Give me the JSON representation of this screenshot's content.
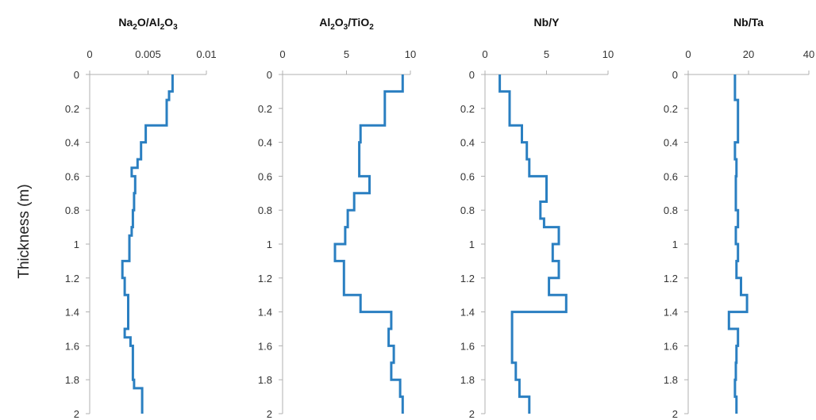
{
  "figure": {
    "ylabel": "Thickness (m)",
    "colors": {
      "series": "#2a7fc1",
      "axis": "#b0b0b0",
      "text": "#333333"
    }
  },
  "chart_data": [
    {
      "type": "line",
      "title": "Na2O/Al2O3",
      "title_parts": [
        [
          "Na",
          ""
        ],
        [
          "2",
          "sub"
        ],
        [
          "O/Al",
          ""
        ],
        [
          "2",
          "sub"
        ],
        [
          "O",
          ""
        ],
        [
          "3",
          "sub"
        ]
      ],
      "xlim": [
        0,
        0.01
      ],
      "xticks": [
        "0",
        "0.005",
        "0.01"
      ],
      "xtick_values": [
        0,
        0.005,
        0.01
      ],
      "ylim": [
        0,
        2
      ],
      "yticks": [
        "0",
        "0.2",
        "0.4",
        "0.6",
        "0.8",
        "1",
        "1.2",
        "1.4",
        "1.6",
        "1.8",
        "2"
      ],
      "ytick_values": [
        0,
        0.2,
        0.4,
        0.6,
        0.8,
        1,
        1.2,
        1.4,
        1.6,
        1.8,
        2
      ],
      "y_inverted": true,
      "step": "vertical",
      "x": [
        0.0071,
        0.0071,
        0.0068,
        0.0068,
        0.0066,
        0.0066,
        0.0048,
        0.0048,
        0.0044,
        0.0044,
        0.0041,
        0.0041,
        0.0036,
        0.0036,
        0.0039,
        0.0039,
        0.0038,
        0.0038,
        0.0037,
        0.0037,
        0.0036,
        0.0036,
        0.0034,
        0.0034,
        0.0028,
        0.0028,
        0.003,
        0.003,
        0.0033,
        0.0033,
        0.0033,
        0.0033,
        0.003,
        0.003,
        0.0035,
        0.0035,
        0.0037,
        0.0037,
        0.0038,
        0.0038,
        0.0045,
        0.0045
      ],
      "y": [
        0,
        0.1,
        0.1,
        0.15,
        0.15,
        0.3,
        0.3,
        0.4,
        0.4,
        0.5,
        0.5,
        0.55,
        0.55,
        0.6,
        0.6,
        0.7,
        0.7,
        0.8,
        0.8,
        0.9,
        0.9,
        0.95,
        0.95,
        1.1,
        1.1,
        1.2,
        1.2,
        1.3,
        1.3,
        1.4,
        1.4,
        1.5,
        1.5,
        1.55,
        1.55,
        1.6,
        1.6,
        1.8,
        1.8,
        1.85,
        1.85,
        2
      ]
    },
    {
      "type": "line",
      "title": "Al2O3/TiO2",
      "title_parts": [
        [
          "Al",
          ""
        ],
        [
          "2",
          "sub"
        ],
        [
          "O",
          ""
        ],
        [
          "3",
          "sub"
        ],
        [
          "/TiO",
          ""
        ],
        [
          "2",
          "sub"
        ]
      ],
      "xlim": [
        0,
        10
      ],
      "xticks": [
        "0",
        "5",
        "10"
      ],
      "xtick_values": [
        0,
        5,
        10
      ],
      "ylim": [
        0,
        2
      ],
      "yticks": [
        "0",
        "0.2",
        "0.4",
        "0.6",
        "0.8",
        "1",
        "1.2",
        "1.4",
        "1.6",
        "1.8",
        "2"
      ],
      "ytick_values": [
        0,
        0.2,
        0.4,
        0.6,
        0.8,
        1,
        1.2,
        1.4,
        1.6,
        1.8,
        2
      ],
      "y_inverted": true,
      "step": "vertical",
      "x": [
        9.4,
        9.4,
        8.0,
        8.0,
        6.1,
        6.1,
        6.0,
        6.0,
        6.0,
        6.0,
        6.8,
        6.8,
        5.6,
        5.6,
        5.1,
        5.1,
        4.9,
        4.9,
        4.1,
        4.1,
        4.8,
        4.8,
        4.8,
        4.8,
        6.1,
        6.1,
        8.5,
        8.5,
        8.3,
        8.3,
        8.7,
        8.7,
        8.5,
        8.5,
        9.2,
        9.2,
        9.4,
        9.4
      ],
      "y": [
        0,
        0.1,
        0.1,
        0.3,
        0.3,
        0.4,
        0.4,
        0.5,
        0.5,
        0.6,
        0.6,
        0.7,
        0.7,
        0.8,
        0.8,
        0.9,
        0.9,
        1.0,
        1.0,
        1.1,
        1.1,
        1.2,
        1.2,
        1.3,
        1.3,
        1.4,
        1.4,
        1.5,
        1.5,
        1.6,
        1.6,
        1.7,
        1.7,
        1.8,
        1.8,
        1.9,
        1.9,
        2
      ]
    },
    {
      "type": "line",
      "title": "Nb/Y",
      "title_parts": [
        [
          "Nb/Y",
          ""
        ]
      ],
      "xlim": [
        0,
        10
      ],
      "xticks": [
        "0",
        "5",
        "10"
      ],
      "xtick_values": [
        0,
        5,
        10
      ],
      "ylim": [
        0,
        2
      ],
      "yticks": [
        "0",
        "0.2",
        "0.4",
        "0.6",
        "0.8",
        "1",
        "1.2",
        "1.4",
        "1.6",
        "1.8",
        "2"
      ],
      "ytick_values": [
        0,
        0.2,
        0.4,
        0.6,
        0.8,
        1,
        1.2,
        1.4,
        1.6,
        1.8,
        2
      ],
      "y_inverted": true,
      "step": "vertical",
      "x": [
        1.2,
        1.2,
        2.0,
        2.0,
        3.0,
        3.0,
        3.4,
        3.4,
        3.6,
        3.6,
        5.0,
        5.0,
        4.5,
        4.5,
        4.8,
        4.8,
        6.0,
        6.0,
        5.5,
        5.5,
        6.0,
        6.0,
        5.2,
        5.2,
        6.6,
        6.6,
        2.2,
        2.2,
        2.2,
        2.2,
        2.5,
        2.5,
        2.8,
        2.8,
        3.6,
        3.6
      ],
      "y": [
        0,
        0.1,
        0.1,
        0.3,
        0.3,
        0.4,
        0.4,
        0.5,
        0.5,
        0.6,
        0.6,
        0.75,
        0.75,
        0.85,
        0.85,
        0.9,
        0.9,
        1.0,
        1.0,
        1.1,
        1.1,
        1.2,
        1.2,
        1.3,
        1.3,
        1.4,
        1.4,
        1.55,
        1.55,
        1.7,
        1.7,
        1.8,
        1.8,
        1.9,
        1.9,
        2
      ]
    },
    {
      "type": "line",
      "title": "Nb/Ta",
      "title_parts": [
        [
          "Nb/Ta",
          ""
        ]
      ],
      "xlim": [
        0,
        40
      ],
      "xticks": [
        "0",
        "20",
        "40"
      ],
      "xtick_values": [
        0,
        20,
        40
      ],
      "ylim": [
        0,
        2
      ],
      "yticks": [
        "0",
        "0.2",
        "0.4",
        "0.6",
        "0.8",
        "1",
        "1.2",
        "1.4",
        "1.6",
        "1.8",
        "2"
      ],
      "ytick_values": [
        0,
        0.2,
        0.4,
        0.6,
        0.8,
        1,
        1.2,
        1.4,
        1.6,
        1.8,
        2
      ],
      "y_inverted": true,
      "step": "vertical",
      "x": [
        15.5,
        15.5,
        16.5,
        16.5,
        15.5,
        15.5,
        16.0,
        16.0,
        15.8,
        15.8,
        16.5,
        16.5,
        15.8,
        15.8,
        16.5,
        16.5,
        16.0,
        16.0,
        17.5,
        17.5,
        19.5,
        19.5,
        13.5,
        13.5,
        16.5,
        16.5,
        16.0,
        16.0,
        15.8,
        15.8,
        15.5,
        15.5,
        16.0,
        16.0
      ],
      "y": [
        0,
        0.15,
        0.15,
        0.4,
        0.4,
        0.5,
        0.5,
        0.6,
        0.6,
        0.8,
        0.8,
        0.9,
        0.9,
        1.0,
        1.0,
        1.1,
        1.1,
        1.2,
        1.2,
        1.3,
        1.3,
        1.4,
        1.4,
        1.5,
        1.5,
        1.6,
        1.6,
        1.7,
        1.7,
        1.8,
        1.8,
        1.9,
        1.9,
        2
      ]
    }
  ]
}
